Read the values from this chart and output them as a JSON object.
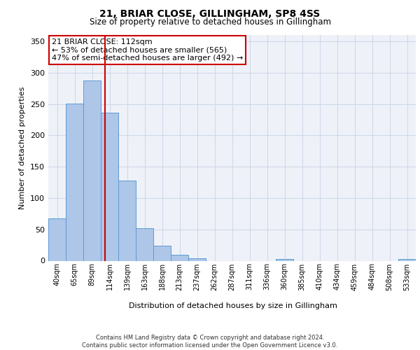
{
  "title1": "21, BRIAR CLOSE, GILLINGHAM, SP8 4SS",
  "title2": "Size of property relative to detached houses in Gillingham",
  "xlabel": "Distribution of detached houses by size in Gillingham",
  "ylabel": "Number of detached properties",
  "categories": [
    "40sqm",
    "65sqm",
    "89sqm",
    "114sqm",
    "139sqm",
    "163sqm",
    "188sqm",
    "213sqm",
    "237sqm",
    "262sqm",
    "287sqm",
    "311sqm",
    "336sqm",
    "360sqm",
    "385sqm",
    "410sqm",
    "434sqm",
    "459sqm",
    "484sqm",
    "508sqm",
    "533sqm"
  ],
  "values": [
    68,
    251,
    287,
    236,
    128,
    52,
    24,
    10,
    4,
    0,
    0,
    0,
    0,
    3,
    0,
    0,
    0,
    0,
    0,
    0,
    3
  ],
  "bar_color": "#aec6e8",
  "bar_edge_color": "#5b9bd5",
  "grid_color": "#d0d8e8",
  "background_color": "#eef2f8",
  "vline_x": 2.72,
  "vline_color": "#cc0000",
  "annotation_text": "21 BRIAR CLOSE: 112sqm\n← 53% of detached houses are smaller (565)\n47% of semi-detached houses are larger (492) →",
  "annotation_box_color": "#ffffff",
  "annotation_box_edge": "#cc0000",
  "ylim": [
    0,
    360
  ],
  "footnote": "Contains HM Land Registry data © Crown copyright and database right 2024.\nContains public sector information licensed under the Open Government Licence v3.0."
}
